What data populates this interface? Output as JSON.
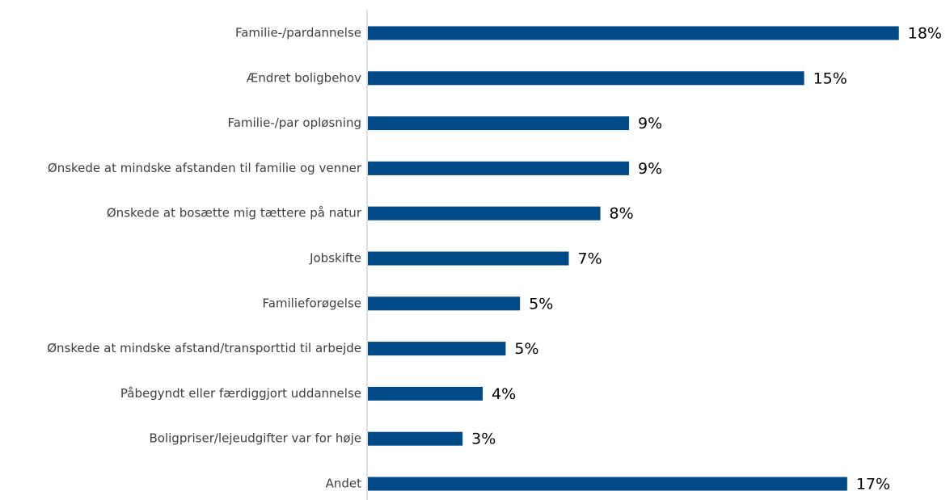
{
  "chart_data": {
    "type": "bar",
    "orientation": "horizontal",
    "color": "#004b87",
    "categories": [
      "Familie-/pardannelse",
      "Ændret boligbehov",
      "Familie-/par opløsning",
      "Ønskede at mindske afstanden til familie og venner",
      "Ønskede at bosætte mig tættere på natur",
      "Jobskifte",
      "Familieforøgelse",
      "Ønskede at mindske afstand/transporttid til arbejde",
      "Påbegyndt eller færdiggjort uddannelse",
      "Boligpriser/lejeudgifter var for høje",
      "Andet"
    ],
    "values": [
      18.5,
      15.2,
      9.1,
      9.1,
      8.1,
      7.0,
      5.3,
      4.8,
      4.0,
      3.3,
      16.7
    ],
    "value_labels": [
      "18%",
      "15%",
      "9%",
      "9%",
      "8%",
      "7%",
      "5%",
      "5%",
      "4%",
      "3%",
      "17%"
    ],
    "xlim": [
      0,
      20
    ]
  }
}
